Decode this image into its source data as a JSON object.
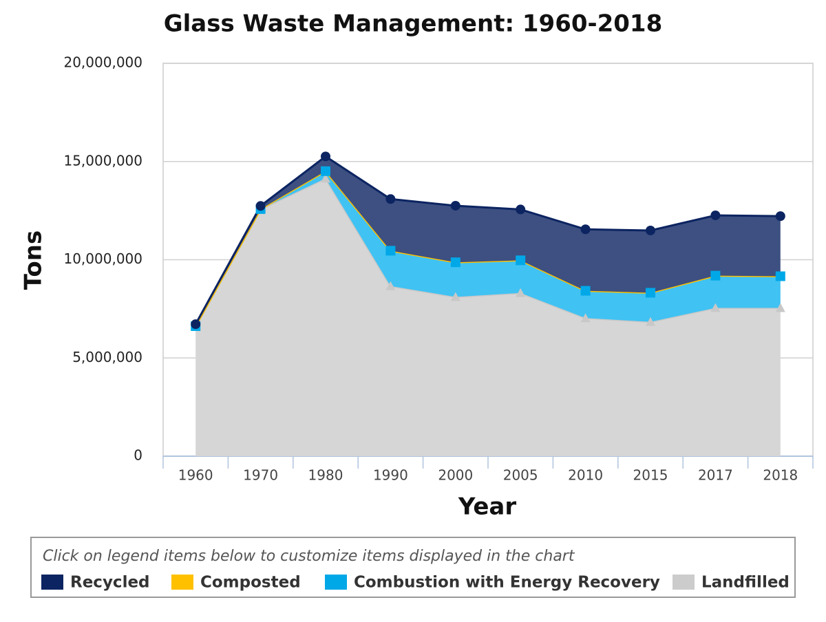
{
  "chart_data": {
    "type": "stacked_area",
    "title": "Glass Waste Management: 1960-2018",
    "x_label": "Year",
    "y_label": "Tons",
    "categories": [
      "1960",
      "1970",
      "1980",
      "1990",
      "2000",
      "2005",
      "2010",
      "2015",
      "2017",
      "2018"
    ],
    "series": [
      {
        "name": "Recycled",
        "color": "#0c2461",
        "marker": "circle",
        "values": [
          100000,
          160000,
          750000,
          2630000,
          2880000,
          2590000,
          3130000,
          3170000,
          3070000,
          3060000
        ]
      },
      {
        "name": "Composted",
        "color": "#ffc000",
        "marker": "diamond",
        "values": [
          0,
          0,
          0,
          0,
          0,
          0,
          0,
          0,
          0,
          0
        ]
      },
      {
        "name": "Combustion with Energy Recovery",
        "color": "#00a8e8",
        "marker": "square",
        "values": [
          0,
          0,
          370000,
          1800000,
          1760000,
          1660000,
          1390000,
          1480000,
          1640000,
          1610000
        ]
      },
      {
        "name": "Landfilled",
        "color": "#c8c8c8",
        "marker": "triangle",
        "values": [
          6620000,
          12580000,
          14140000,
          8660000,
          8110000,
          8310000,
          7030000,
          6840000,
          7550000,
          7550000
        ]
      }
    ],
    "ylim": [
      0,
      20000000
    ],
    "yticks": [
      0,
      {
        "value": 5000000,
        "label": "5,000,000"
      },
      {
        "value": 10000000,
        "label": "10,000,000"
      },
      {
        "value": 15000000,
        "label": "15,000,000"
      },
      {
        "value": 20000000,
        "label": "20,000,000"
      }
    ],
    "grid": true,
    "legend_note": "Click on legend items below to customize items displayed in the chart",
    "legend_position": "bottom"
  }
}
